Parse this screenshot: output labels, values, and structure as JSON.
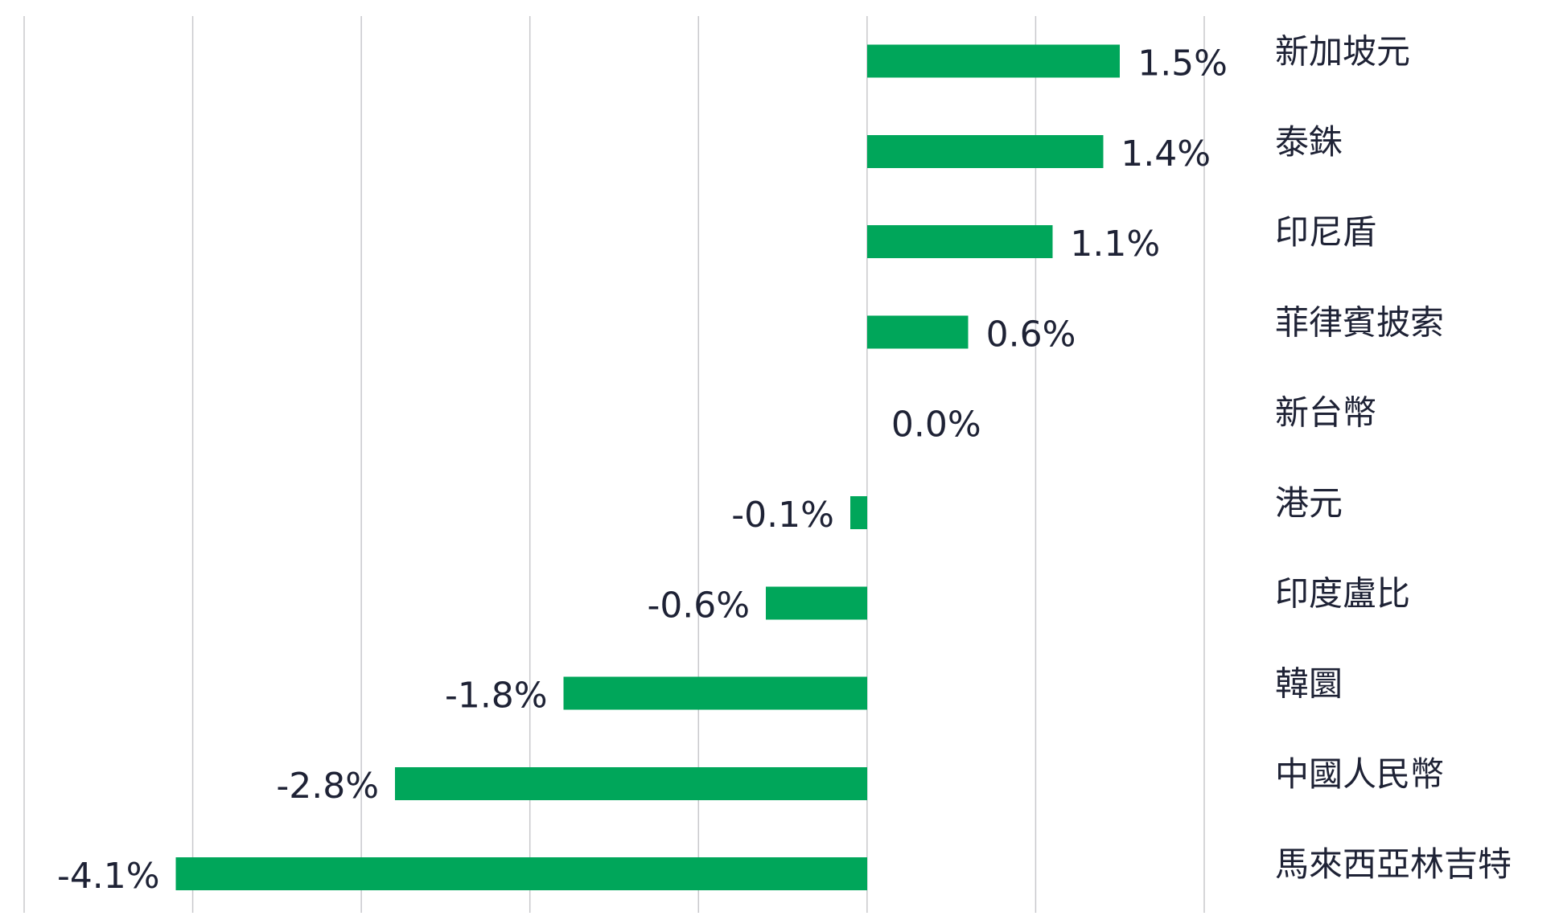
{
  "chart_data": {
    "type": "bar",
    "orientation": "horizontal",
    "title": "",
    "xlabel": "",
    "ylabel": "",
    "categories": [
      "新加坡元",
      "泰銖",
      "印尼盾",
      "菲律賓披索",
      "新台幣",
      "港元",
      "印度盧比",
      "韓圜",
      "中國人民幣",
      "馬來西亞林吉特"
    ],
    "values": [
      1.5,
      1.4,
      1.1,
      0.6,
      0.0,
      -0.1,
      -0.6,
      -1.8,
      -2.8,
      -4.1
    ],
    "value_labels": [
      "1.5%",
      "1.4%",
      "1.1%",
      "0.6%",
      "0.0%",
      "-0.1%",
      "-0.6%",
      "-1.8%",
      "-2.8%",
      "-4.1%"
    ],
    "xlim": [
      -5,
      2
    ],
    "x_gridlines": [
      -5,
      -4,
      -3,
      -2,
      -1,
      0,
      1,
      2
    ],
    "grid": true,
    "legend": "none",
    "bar_color": "#00a65a",
    "text_color": "#1e2235",
    "grid_color": "#c8c8cc",
    "category_label_position": "right"
  }
}
